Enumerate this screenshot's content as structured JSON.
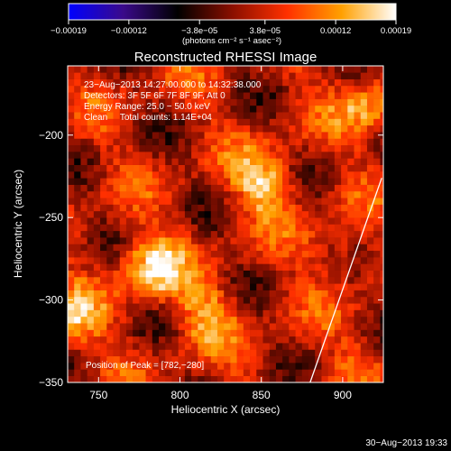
{
  "chart_data": {
    "type": "heatmap",
    "title": "Reconstructed RHESSI Image",
    "xlabel": "Heliocentric X (arcsec)",
    "ylabel": "Heliocentric Y (arcsec)",
    "xlim": [
      731,
      925
    ],
    "ylim": [
      -350,
      -158
    ],
    "xticks": [
      750,
      800,
      850,
      900
    ],
    "yticks": [
      -200,
      -250,
      -300,
      -350
    ],
    "xtick_labels": [
      "750",
      "800",
      "850",
      "900"
    ],
    "ytick_labels": [
      "−200",
      "−250",
      "−300",
      "−350"
    ],
    "colorbar": {
      "min": -0.00019,
      "max": 0.00019,
      "tick_values": [
        -0.00019,
        -0.00012,
        -3.8e-05,
        3.8e-05,
        0.00012,
        0.00019
      ],
      "tick_labels": [
        "−0.00019",
        "−0.00012",
        "−3.8e−05",
        "3.8e−05",
        "0.00012",
        "0.00019"
      ],
      "units": "(photons cm⁻² s⁻¹ asec⁻²)",
      "colormap": [
        "#0000ff",
        "#3a0a8a",
        "#000000",
        "#8a0f00",
        "#ff3000",
        "#ffa000",
        "#ffffff"
      ]
    },
    "annotations": [
      "23−Aug−2013 14:27:00.000 to 14:32:38.000",
      "Detectors: 3F 5F 6F 7F 8F 9F, Att 0",
      "Energy Range: 25.0 − 50.0 keV",
      "Clean     Total counts: 1.14E+04",
      "Position of Peak = [782,−280]"
    ],
    "sources": [
      {
        "x": 782,
        "y": -280,
        "peak": 0.00019
      },
      {
        "x": 852,
        "y": -228,
        "peak": 0.00016
      },
      {
        "x": 816,
        "y": -308,
        "peak": 0.00013
      },
      {
        "x": 733,
        "y": -312,
        "peak": 0.00014
      },
      {
        "x": 916,
        "y": -183,
        "peak": 0.00013
      },
      {
        "x": 897,
        "y": -268,
        "peak": 9e-05
      },
      {
        "x": 910,
        "y": -335,
        "peak": 6e-05
      }
    ],
    "background_level": 3e-05,
    "grid": false,
    "limb_points": [
      [
        880,
        -350
      ],
      [
        924,
        -226
      ]
    ]
  },
  "footer": {
    "timestamp": "30−Aug−2013 19:33"
  }
}
